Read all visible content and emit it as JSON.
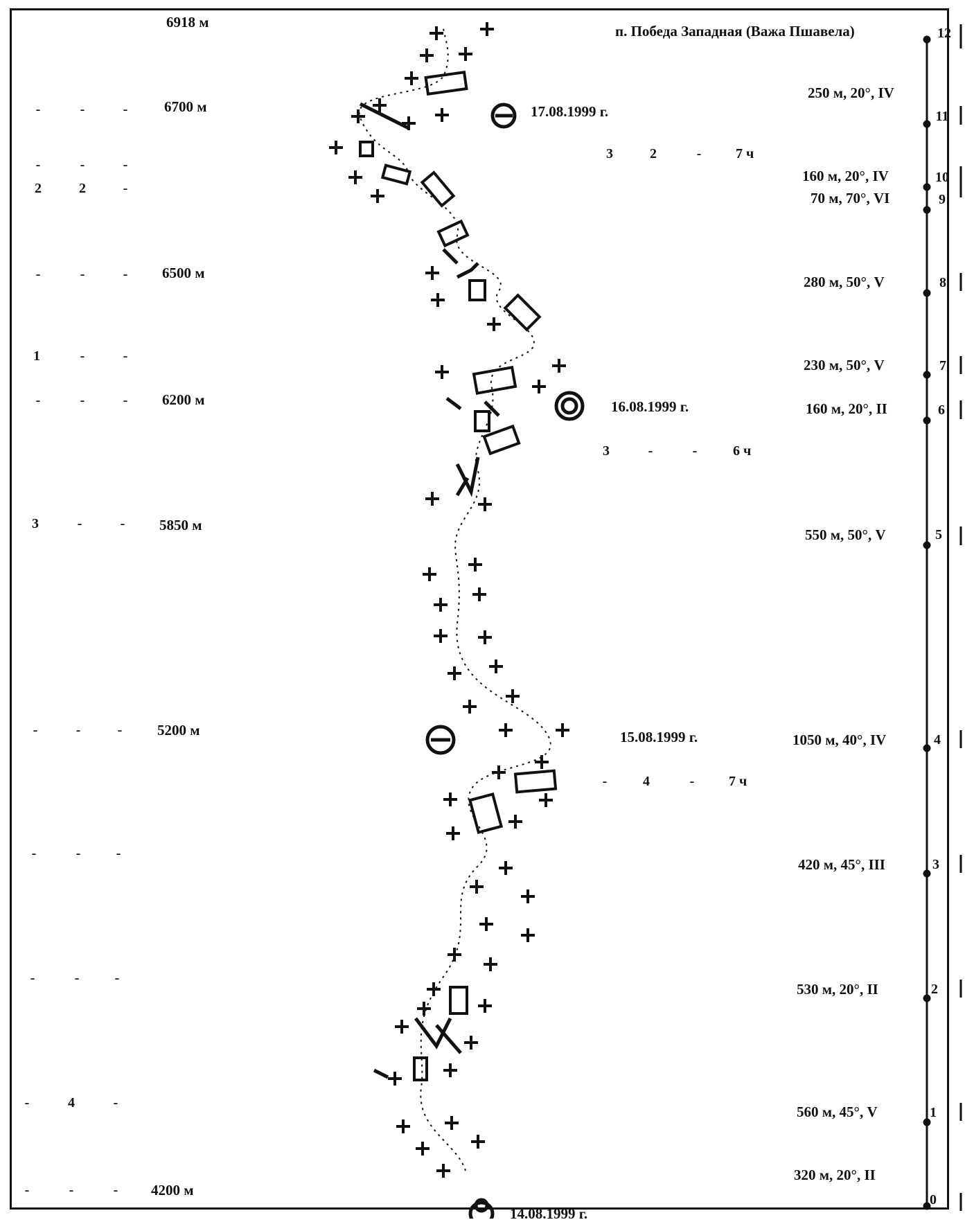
{
  "title": "п. Победа Западная (Важа Пшавела)",
  "altitudes": {
    "a6918": "6918 м",
    "a6700": "6700 м",
    "a6500": "6500 м",
    "a6200": "6200  м",
    "a5850": "5850 м",
    "a5200": "5200 м",
    "a4200": "4200 м"
  },
  "dates": {
    "d0817": "17.08.1999 г.",
    "d0816": "16.08.1999 г.",
    "d0815": "15.08.1999 г.",
    "d0814": "14.08.1999 г."
  },
  "stations": [
    {
      "num": "0",
      "sect": "320 м, 20°, II"
    },
    {
      "num": "1",
      "sect": "560 м, 45°, V"
    },
    {
      "num": "2",
      "sect": "530 м, 20°, II"
    },
    {
      "num": "3",
      "sect": "420 м, 45°, III"
    },
    {
      "num": "4",
      "sect": "1050 м, 40°, IV"
    },
    {
      "num": "5",
      "sect": "550 м, 50°, V"
    },
    {
      "num": "6",
      "sect": "160 м, 20°, II"
    },
    {
      "num": "7",
      "sect": "230 м, 50°, V"
    },
    {
      "num": "8",
      "sect": "280 м, 50°, V"
    },
    {
      "num": "9",
      "sect": "70 м, 70°, VI"
    },
    {
      "num": "10",
      "sect": "160 м, 20°, IV"
    },
    {
      "num": "11",
      "sect": "250 м, 20°, IV"
    },
    {
      "num": "12",
      "sect": ""
    }
  ],
  "left_cols": {
    "r1": [
      "-",
      "-",
      "-"
    ],
    "r2": [
      "-",
      "-",
      "-"
    ],
    "r3": [
      "2",
      "2",
      "-"
    ],
    "r4": [
      "-",
      "-",
      "-"
    ],
    "r5": [
      "1",
      "-",
      "-"
    ],
    "r6": [
      "-",
      "-",
      "-"
    ],
    "r7": [
      "3",
      "-",
      "-"
    ],
    "r8": [
      "-",
      "-",
      "-"
    ],
    "r9": [
      "-",
      "-",
      "-"
    ],
    "r10": [
      "-",
      "-",
      "-"
    ],
    "r11": [
      "-",
      "4",
      "-"
    ],
    "r12": [
      "-",
      "-",
      "-"
    ]
  },
  "day_summaries": {
    "s1": [
      "3",
      "2",
      "-",
      "7 ч"
    ],
    "s2": [
      "3",
      "-",
      "-",
      "6 ч"
    ],
    "s3": [
      "-",
      "4",
      "-",
      "7 ч"
    ]
  }
}
